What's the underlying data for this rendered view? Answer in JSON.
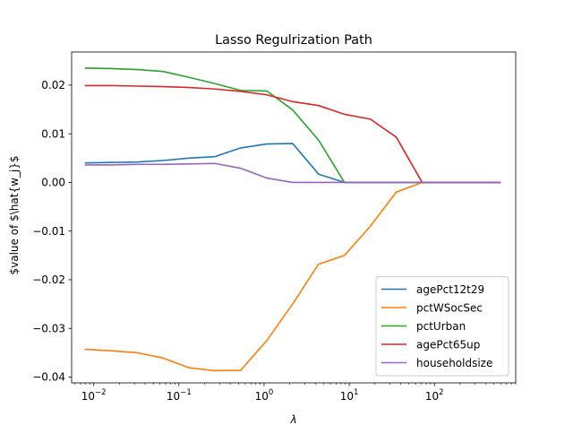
{
  "chart_data": {
    "type": "line",
    "title": "Lasso Regulrization Path",
    "xlabel": "λ",
    "ylabel": "$value of $\\hat{w_j}$",
    "xscale": "log",
    "xlim": [
      0.0055,
      900
    ],
    "ylim": [
      -0.0412,
      0.0268
    ],
    "x": [
      0.008,
      0.0161,
      0.0324,
      0.0653,
      0.1315,
      0.2649,
      0.5335,
      1.0746,
      2.1646,
      4.3601,
      8.7824,
      17.69,
      35.633,
      71.774,
      144.57,
      291.21,
      586.58
    ],
    "x_ticks": [
      {
        "value": 0.01,
        "base": "10",
        "exp": "−2"
      },
      {
        "value": 0.1,
        "base": "10",
        "exp": "−1"
      },
      {
        "value": 1,
        "base": "10",
        "exp": "0"
      },
      {
        "value": 10,
        "base": "10",
        "exp": "1"
      },
      {
        "value": 100,
        "base": "10",
        "exp": "2"
      }
    ],
    "y_ticks": [
      {
        "value": 0.02,
        "label": "0.02"
      },
      {
        "value": 0.01,
        "label": "0.01"
      },
      {
        "value": 0.0,
        "label": "0.00"
      },
      {
        "value": -0.01,
        "label": "−0.01"
      },
      {
        "value": -0.02,
        "label": "−0.02"
      },
      {
        "value": -0.03,
        "label": "−0.03"
      },
      {
        "value": -0.04,
        "label": "−0.04"
      }
    ],
    "legend_position": "lower-right",
    "series": [
      {
        "name": "agePct12t29",
        "color": "#1f77b4",
        "values": [
          0.004,
          0.0041,
          0.0042,
          0.0045,
          0.005,
          0.0053,
          0.0071,
          0.0079,
          0.008,
          0.0017,
          0.0,
          0.0,
          0.0,
          0.0,
          0.0,
          0.0,
          0.0
        ]
      },
      {
        "name": "pctWSocSec",
        "color": "#ff7f0e",
        "values": [
          -0.0343,
          -0.0346,
          -0.035,
          -0.0361,
          -0.0381,
          -0.0387,
          -0.0386,
          -0.0325,
          -0.025,
          -0.0168,
          -0.015,
          -0.009,
          -0.002,
          0.0,
          0.0,
          0.0,
          0.0
        ]
      },
      {
        "name": "pctUrban",
        "color": "#2ca02c",
        "values": [
          0.0235,
          0.0234,
          0.0232,
          0.0228,
          0.0216,
          0.0203,
          0.0189,
          0.0188,
          0.0149,
          0.0087,
          0.0,
          0.0,
          0.0,
          0.0,
          0.0,
          0.0,
          0.0
        ]
      },
      {
        "name": "agePct65up",
        "color": "#d62728",
        "values": [
          0.0199,
          0.0199,
          0.0198,
          0.0197,
          0.0195,
          0.0192,
          0.0187,
          0.018,
          0.0166,
          0.0158,
          0.014,
          0.013,
          0.0093,
          0.0,
          0.0,
          0.0,
          0.0
        ]
      },
      {
        "name": "householdsize",
        "color": "#9467bd",
        "values": [
          0.0036,
          0.0036,
          0.0037,
          0.0037,
          0.0038,
          0.0039,
          0.0029,
          0.0009,
          0.0,
          0.0,
          0.0,
          0.0,
          0.0,
          0.0,
          0.0,
          0.0,
          0.0
        ]
      }
    ]
  }
}
